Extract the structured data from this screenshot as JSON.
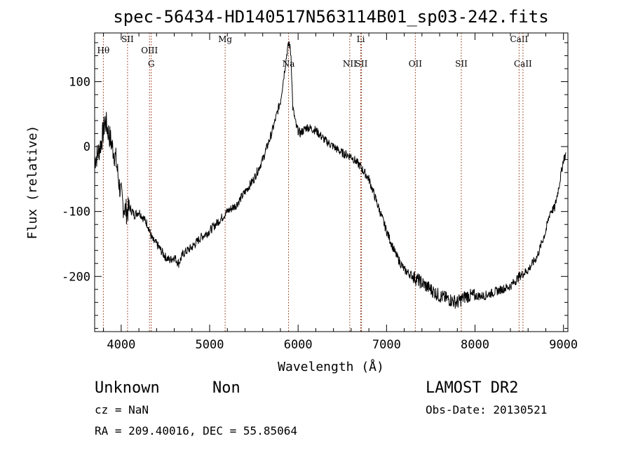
{
  "chart_data": {
    "type": "line",
    "title": "spec-56434-HD140517N563114B01_sp03-242.fits",
    "xlabel": "Wavelength (Å)",
    "ylabel": "Flux (relative)",
    "xlim": [
      3700,
      9050
    ],
    "ylim": [
      -285,
      175
    ],
    "xticks": [
      4000,
      5000,
      6000,
      7000,
      8000,
      9000
    ],
    "yticks": [
      -200,
      -100,
      0,
      100
    ],
    "series": [
      {
        "x": [
          3700,
          3740,
          3780,
          3820,
          3860,
          3900,
          3940,
          3980,
          4020,
          4060,
          4100,
          4150,
          4200,
          4250,
          4300,
          4330,
          4360,
          4400,
          4450,
          4500,
          4550,
          4600,
          4650,
          4700,
          4800,
          4900,
          5000,
          5100,
          5200,
          5300,
          5400,
          5500,
          5600,
          5700,
          5760,
          5800,
          5840,
          5860,
          5880,
          5900,
          5920,
          5940,
          5980,
          6020,
          6100,
          6200,
          6300,
          6400,
          6500,
          6600,
          6700,
          6800,
          6900,
          7000,
          7100,
          7200,
          7300,
          7400,
          7500,
          7600,
          7700,
          7800,
          7900,
          8000,
          8100,
          8200,
          8300,
          8400,
          8500,
          8600,
          8700,
          8800,
          8850,
          8900,
          8950,
          9000,
          9030
        ],
        "y": [
          -20,
          -10,
          10,
          40,
          20,
          0,
          -20,
          -60,
          -90,
          -100,
          -95,
          -105,
          -100,
          -110,
          -120,
          -135,
          -145,
          -150,
          -160,
          -170,
          -175,
          -170,
          -180,
          -165,
          -155,
          -140,
          -130,
          -115,
          -100,
          -90,
          -70,
          -50,
          -20,
          20,
          50,
          70,
          110,
          130,
          150,
          160,
          140,
          60,
          30,
          20,
          30,
          25,
          10,
          0,
          -10,
          -15,
          -30,
          -50,
          -90,
          -130,
          -165,
          -190,
          -200,
          -210,
          -220,
          -230,
          -235,
          -240,
          -230,
          -230,
          -230,
          -225,
          -220,
          -215,
          -200,
          -190,
          -170,
          -130,
          -100,
          -95,
          -60,
          -20,
          -10
        ]
      }
    ],
    "lines": [
      {
        "label": "Hθ",
        "x": 3798,
        "row": 2
      },
      {
        "label": "SII",
        "x": 4072,
        "row": 1
      },
      {
        "label": "OIII",
        "x": 4320,
        "row": 2
      },
      {
        "label": "G",
        "x": 4340,
        "row": 3
      },
      {
        "label": "Mg",
        "x": 5175,
        "row": 1
      },
      {
        "label": "Na",
        "x": 5892,
        "row": 4
      },
      {
        "label": "NII",
        "x": 6584,
        "row": 3
      },
      {
        "label": "SII",
        "x": 6716,
        "row": 3
      },
      {
        "label": "Li",
        "x": 6708,
        "row": 1
      },
      {
        "label": "OII",
        "x": 7325,
        "row": 3
      },
      {
        "label": "SII",
        "x": 7845,
        "row": 3
      },
      {
        "label": "CaII",
        "x": 8498,
        "row": 1
      },
      {
        "label": "CaII",
        "x": 8542,
        "row": 3
      }
    ],
    "line_color": "#8b2500"
  },
  "footer": {
    "object_class": "Unknown",
    "subclass": "Non",
    "cz": "cz = NaN",
    "radec": "RA = 209.40016, DEC =  55.85064",
    "survey": "LAMOST DR2",
    "obs_date": "Obs-Date: 20130521"
  }
}
